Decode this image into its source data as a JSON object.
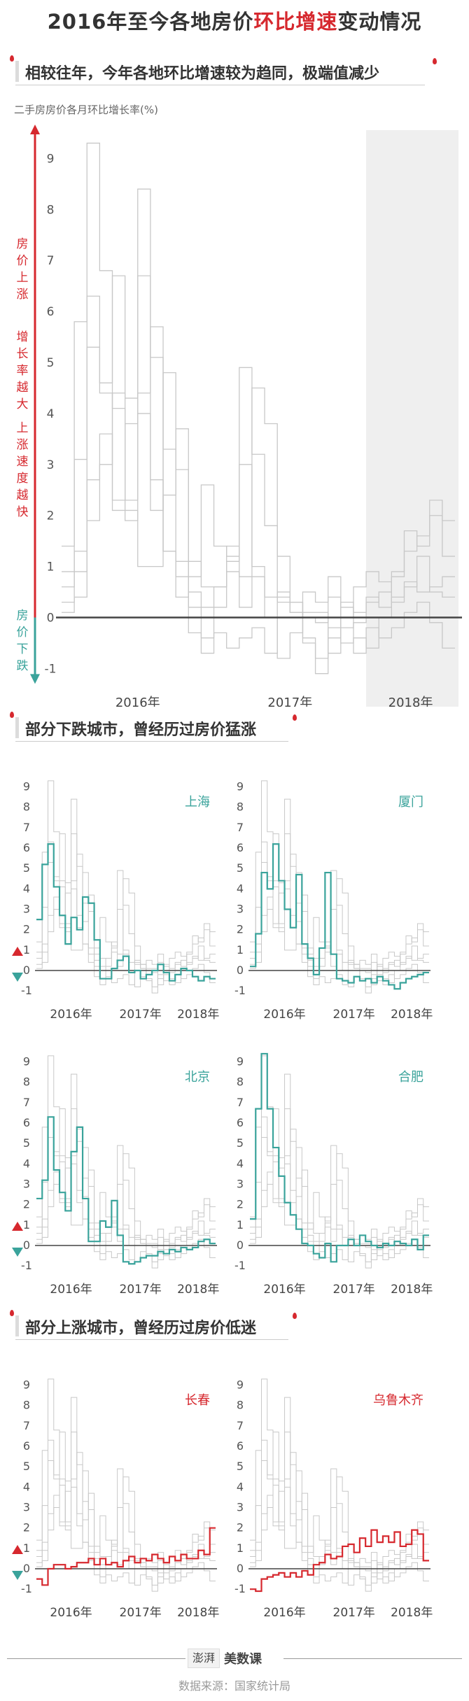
{
  "title": {
    "prefix": "2016年至今各地房价",
    "highlight": "环比增速",
    "suffix": "变动情况"
  },
  "sections": {
    "s1": "相较往年，今年各地环比增速较为趋同，极端值减少",
    "s2": "部分下跌城市，曾经历过房价猛涨",
    "s3": "部分上涨城市，曾经历过房价低迷"
  },
  "main_chart": {
    "ylabel": "二手房房价各月环比增长率(%)",
    "annotation_up": "房价上涨",
    "annotation_growth": "增长率越大",
    "annotation_speed": "上涨速度越快",
    "annotation_down": "房价下跌"
  },
  "footer": {
    "logo_mark": "澎湃",
    "logo_name": "美数课",
    "source": "数据来源：国家统计局"
  },
  "colors": {
    "up": "#d6282e",
    "down": "#3aa39b",
    "bg_lines": "#c8c8c8",
    "shade": "#efefef"
  },
  "chart_data": [
    {
      "type": "line",
      "id": "main",
      "ylabel": "二手房房价各月环比增长率(%)",
      "ylim": [
        -1.2,
        9.5
      ],
      "yticks": [
        -1,
        0,
        1,
        2,
        3,
        4,
        5,
        6,
        7,
        8,
        9
      ],
      "xticks": [
        "2016年",
        "2017年",
        "2018年"
      ],
      "shaded_period": "2018年",
      "series": [
        {
          "values": [
            0.6,
            1.3,
            5.3,
            4.6,
            6.7,
            2.1,
            1.0,
            1.0,
            4.8,
            0.8,
            -0.3,
            -0.7,
            -0.3,
            -0.6,
            -0.4,
            -0.2,
            -0.7,
            0.4,
            0.3,
            -0.4,
            -0.8,
            -0.2,
            -0.5,
            -0.4,
            -0.6,
            0.0,
            0.4,
            0.6,
            1.2,
            0.5,
            0.4
          ]
        },
        {
          "values": [
            0.9,
            3.1,
            6.3,
            4.4,
            2.3,
            3.8,
            8.4,
            2.1,
            2.4,
            3.7,
            0.2,
            -0.4,
            0.2,
            1.4,
            0.2,
            0.8,
            0.4,
            0.5,
            0.1,
            0.0,
            -0.1,
            0.8,
            -0.2,
            -0.1,
            0.3,
            0.5,
            0.9,
            1.3,
            1.6,
            2.3,
            1.2
          ]
        },
        {
          "values": [
            1.4,
            5.8,
            9.3,
            6.8,
            4.1,
            2.3,
            4.4,
            5.7,
            3.3,
            2.9,
            1.1,
            0.6,
            0.6,
            1.1,
            3.0,
            1.0,
            0.0,
            -0.8,
            -0.3,
            0.1,
            0.1,
            -0.7,
            0.2,
            0.1,
            0.4,
            0.2,
            0.8,
            1.7,
            1.4,
            2.0,
            1.9
          ]
        },
        {
          "values": [
            0.3,
            0.9,
            2.7,
            3.0,
            4.4,
            4.3,
            6.7,
            5.1,
            1.3,
            1.1,
            0.8,
            2.6,
            1.4,
            1.2,
            4.9,
            3.2,
            1.8,
            1.2,
            0.3,
            -0.5,
            -1.1,
            -0.4,
            0.3,
            -0.7,
            -0.2,
            -0.4,
            -0.2,
            0.1,
            0.3,
            -0.1,
            -0.6
          ]
        },
        {
          "values": [
            0.1,
            0.4,
            1.9,
            3.6,
            2.1,
            1.9,
            4.0,
            2.7,
            1.3,
            0.4,
            0.5,
            0.2,
            0.6,
            0.9,
            0.8,
            4.5,
            3.8,
            0.3,
            0.1,
            0.5,
            0.3,
            0.4,
            0.0,
            0.6,
            0.9,
            0.7,
            0.3,
            0.7,
            0.5,
            0.6,
            0.8
          ]
        }
      ]
    },
    {
      "type": "line",
      "id": "shanghai",
      "name": "上海",
      "color": "#3aa39b",
      "ylim": [
        -1.2,
        9.5
      ],
      "xticks": [
        "2016年",
        "2017年",
        "2018年"
      ],
      "highlight": [
        2.5,
        5.2,
        6.2,
        4.1,
        2.7,
        1.3,
        2.6,
        2.0,
        3.6,
        3.3,
        1.5,
        -0.4,
        -0.4,
        0.1,
        0.5,
        0.7,
        -0.1,
        0.0,
        -0.4,
        -0.2,
        0.0,
        0.3,
        -0.1,
        -0.5,
        -0.2,
        0.1,
        0.0,
        -0.3,
        -0.5,
        -0.3,
        -0.4
      ]
    },
    {
      "type": "line",
      "id": "xiamen",
      "name": "厦门",
      "color": "#3aa39b",
      "ylim": [
        -1.2,
        9.5
      ],
      "xticks": [
        "2016年",
        "2017年",
        "2018年"
      ],
      "highlight": [
        0.2,
        1.8,
        4.8,
        4.0,
        6.2,
        4.4,
        3.0,
        2.1,
        4.7,
        1.3,
        0.6,
        -0.2,
        1.1,
        4.8,
        0.8,
        -0.4,
        -0.5,
        -0.6,
        -0.3,
        -0.5,
        -0.4,
        -0.6,
        -0.3,
        -0.5,
        -0.7,
        -0.9,
        -0.6,
        -0.4,
        -0.3,
        -0.2,
        -0.1
      ]
    },
    {
      "type": "line",
      "id": "beijing",
      "name": "北京",
      "color": "#3aa39b",
      "ylim": [
        -1.2,
        9.5
      ],
      "xticks": [
        "2016年",
        "2017年",
        "2018年"
      ],
      "highlight": [
        2.3,
        3.2,
        6.3,
        3.7,
        2.6,
        1.7,
        4.6,
        5.8,
        2.3,
        0.2,
        0.2,
        1.2,
        0.9,
        2.2,
        0.5,
        -0.8,
        -0.9,
        -0.8,
        -0.6,
        -0.5,
        -0.5,
        -0.3,
        -0.4,
        -0.2,
        -0.3,
        -0.1,
        -0.2,
        -0.1,
        0.2,
        0.3,
        0.1
      ]
    },
    {
      "type": "line",
      "id": "hefei",
      "name": "合肥",
      "color": "#3aa39b",
      "ylim": [
        -1.2,
        9.5
      ],
      "xticks": [
        "2016年",
        "2017年",
        "2018年"
      ],
      "highlight": [
        1.3,
        6.7,
        9.4,
        6.7,
        4.8,
        3.4,
        2.1,
        1.5,
        0.8,
        0.1,
        0.0,
        -0.4,
        -0.6,
        0.1,
        -0.8,
        0.0,
        0.0,
        0.3,
        0.0,
        0.5,
        0.2,
        0.0,
        -0.1,
        0.1,
        0.0,
        0.2,
        0.1,
        0.0,
        0.3,
        -0.2,
        0.5
      ]
    },
    {
      "type": "line",
      "id": "changchun",
      "name": "长春",
      "color": "#d6282e",
      "ylim": [
        -1.2,
        9.5
      ],
      "xticks": [
        "2016年",
        "2017年",
        "2018年"
      ],
      "highlight": [
        -0.5,
        -0.8,
        0.0,
        0.2,
        0.2,
        0.0,
        0.1,
        0.3,
        0.3,
        0.5,
        0.2,
        0.5,
        0.2,
        0.3,
        0.1,
        0.4,
        0.6,
        0.3,
        0.5,
        0.4,
        0.7,
        0.5,
        0.3,
        0.6,
        0.4,
        0.7,
        0.5,
        0.5,
        0.9,
        0.7,
        2.0
      ]
    },
    {
      "type": "line",
      "id": "urumqi",
      "name": "乌鲁木齐",
      "color": "#d6282e",
      "ylim": [
        -1.2,
        9.5
      ],
      "xticks": [
        "2016年",
        "2017年",
        "2018年"
      ],
      "highlight": [
        -1.0,
        -1.1,
        -0.5,
        -0.4,
        -0.3,
        -0.2,
        -0.4,
        -0.2,
        -0.4,
        -0.1,
        -0.3,
        0.2,
        0.3,
        0.7,
        0.5,
        0.6,
        1.1,
        1.2,
        0.8,
        1.5,
        1.1,
        1.9,
        1.3,
        1.6,
        1.3,
        1.8,
        1.1,
        1.2,
        1.9,
        1.7,
        0.4
      ]
    }
  ]
}
